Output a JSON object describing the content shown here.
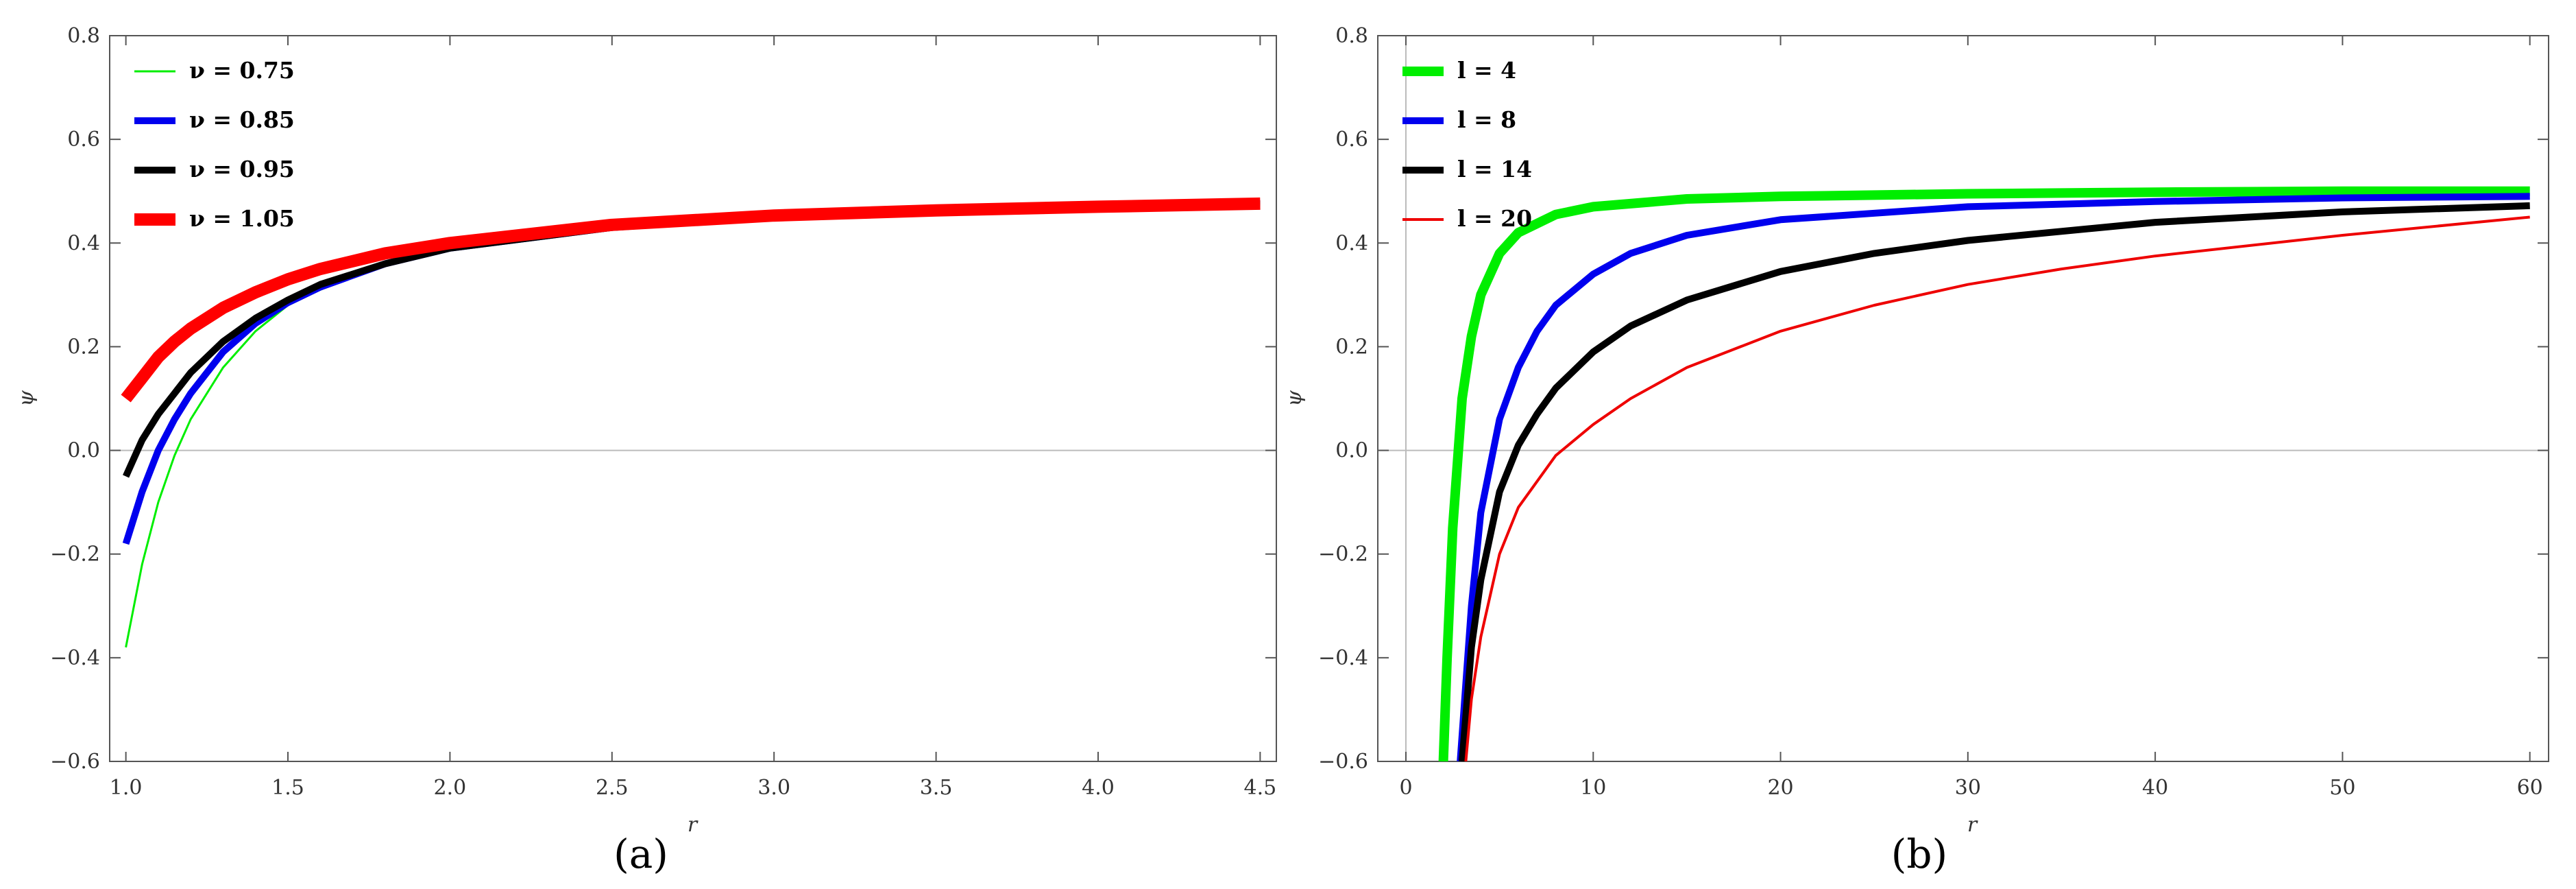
{
  "chart_data": [
    {
      "type": "line",
      "panel_label": "(a)",
      "xlabel": "r",
      "ylabel": "ψ",
      "xlim": [
        0.95,
        4.55
      ],
      "ylim": [
        -0.6,
        0.8
      ],
      "xticks": [
        "1.0",
        "1.5",
        "2.0",
        "2.5",
        "3.0",
        "3.5",
        "4.0",
        "4.5"
      ],
      "yticks": [
        "−0.6",
        "−0.4",
        "−0.2",
        "0.0",
        "0.2",
        "0.4",
        "0.6",
        "0.8"
      ],
      "grid": false,
      "legend_position": "top-left",
      "series": [
        {
          "name": "ν = 0.75",
          "color": "#00ee00",
          "x": [
            1.0,
            1.05,
            1.1,
            1.15,
            1.2,
            1.3,
            1.4,
            1.5,
            1.6,
            1.8,
            2.0,
            2.5,
            3.0,
            3.5,
            4.0,
            4.5
          ],
          "y": [
            -0.38,
            -0.22,
            -0.1,
            -0.01,
            0.06,
            0.16,
            0.23,
            0.28,
            0.31,
            0.36,
            0.39,
            0.43,
            0.45,
            0.462,
            0.47,
            0.476
          ]
        },
        {
          "name": "ν = 0.85",
          "color": "#0000ee",
          "x": [
            1.0,
            1.05,
            1.1,
            1.15,
            1.2,
            1.3,
            1.4,
            1.5,
            1.6,
            1.8,
            2.0,
            2.5,
            3.0,
            3.5,
            4.0,
            4.5
          ],
          "y": [
            -0.18,
            -0.08,
            0.0,
            0.06,
            0.11,
            0.19,
            0.245,
            0.285,
            0.315,
            0.36,
            0.39,
            0.43,
            0.45,
            0.462,
            0.47,
            0.476
          ]
        },
        {
          "name": "ν = 0.95",
          "color": "#000000",
          "x": [
            1.0,
            1.05,
            1.1,
            1.15,
            1.2,
            1.3,
            1.4,
            1.5,
            1.6,
            1.8,
            2.0,
            2.5,
            3.0,
            3.5,
            4.0,
            4.5
          ],
          "y": [
            -0.05,
            0.02,
            0.07,
            0.11,
            0.15,
            0.21,
            0.255,
            0.29,
            0.32,
            0.36,
            0.39,
            0.43,
            0.45,
            0.462,
            0.47,
            0.476
          ]
        },
        {
          "name": "ν = 1.05",
          "color": "#ff0000",
          "x": [
            1.0,
            1.05,
            1.1,
            1.15,
            1.2,
            1.3,
            1.4,
            1.5,
            1.6,
            1.8,
            2.0,
            2.5,
            3.0,
            3.5,
            4.0,
            4.5
          ],
          "y": [
            0.1,
            0.14,
            0.18,
            0.21,
            0.235,
            0.275,
            0.305,
            0.33,
            0.35,
            0.38,
            0.4,
            0.435,
            0.453,
            0.463,
            0.47,
            0.476
          ]
        }
      ]
    },
    {
      "type": "line",
      "panel_label": "(b)",
      "xlabel": "r",
      "ylabel": "ψ",
      "xlim": [
        -1.5,
        61
      ],
      "ylim": [
        -0.6,
        0.8
      ],
      "xticks": [
        "0",
        "10",
        "20",
        "30",
        "40",
        "50",
        "60"
      ],
      "yticks": [
        "−0.6",
        "−0.4",
        "−0.2",
        "0.0",
        "0.2",
        "0.4",
        "0.6",
        "0.8"
      ],
      "grid": false,
      "legend_position": "top-left",
      "series": [
        {
          "name": "l = 4",
          "color": "#00ee00",
          "x": [
            2.0,
            2.2,
            2.5,
            3.0,
            3.5,
            4.0,
            5.0,
            6.0,
            8.0,
            10,
            15,
            20,
            30,
            40,
            50,
            60
          ],
          "y": [
            -0.6,
            -0.4,
            -0.15,
            0.1,
            0.22,
            0.3,
            0.38,
            0.42,
            0.455,
            0.47,
            0.485,
            0.49,
            0.495,
            0.498,
            0.5,
            0.5
          ]
        },
        {
          "name": "l = 8",
          "color": "#0000ee",
          "x": [
            2.9,
            3.2,
            3.5,
            4.0,
            5.0,
            6.0,
            7.0,
            8.0,
            10,
            12,
            15,
            20,
            30,
            40,
            50,
            60
          ],
          "y": [
            -0.6,
            -0.45,
            -0.3,
            -0.12,
            0.06,
            0.16,
            0.23,
            0.28,
            0.34,
            0.38,
            0.415,
            0.445,
            0.47,
            0.48,
            0.487,
            0.49
          ]
        },
        {
          "name": "l = 14",
          "color": "#000000",
          "x": [
            3.0,
            3.5,
            4.0,
            5.0,
            6.0,
            7.0,
            8.0,
            10,
            12,
            15,
            20,
            25,
            30,
            40,
            50,
            60
          ],
          "y": [
            -0.6,
            -0.38,
            -0.25,
            -0.08,
            0.01,
            0.07,
            0.12,
            0.19,
            0.24,
            0.29,
            0.345,
            0.38,
            0.405,
            0.44,
            0.46,
            0.472
          ]
        },
        {
          "name": "l = 20",
          "color": "#ee0000",
          "x": [
            3.2,
            3.5,
            4.0,
            5.0,
            6.0,
            8.0,
            10,
            12,
            15,
            20,
            25,
            30,
            35,
            40,
            50,
            60
          ],
          "y": [
            -0.6,
            -0.48,
            -0.36,
            -0.2,
            -0.11,
            -0.01,
            0.05,
            0.1,
            0.16,
            0.23,
            0.28,
            0.32,
            0.35,
            0.375,
            0.415,
            0.45
          ]
        }
      ]
    }
  ]
}
